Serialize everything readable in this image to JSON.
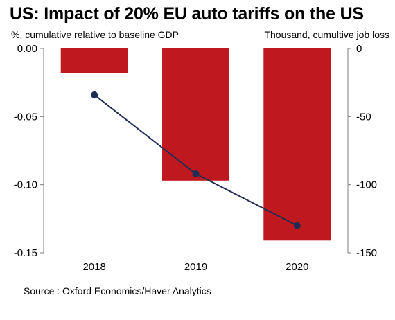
{
  "chart_data": {
    "type": "bar",
    "title": "US: Impact of 20% EU auto tariffs on the US",
    "categories": [
      "2018",
      "2019",
      "2020"
    ],
    "series": [
      {
        "axis": "left",
        "chart_type": "bar",
        "color": "#c0181f",
        "values": [
          -0.018,
          -0.097,
          -0.141
        ]
      },
      {
        "axis": "right",
        "chart_type": "line",
        "color": "#1f2d54",
        "values": [
          -34,
          -92,
          -130
        ]
      }
    ],
    "ylabel": "%, cumulative relative to baseline GDP",
    "ylabel_right": "Thousand, cumultive job loss",
    "ylim": [
      -0.15,
      0
    ],
    "ylim_right": [
      -150,
      0
    ],
    "yticks": [
      "0.00",
      "-0.05",
      "-0.10",
      "-0.15"
    ],
    "yticks_right": [
      "0",
      "-50",
      "-100",
      "-150"
    ],
    "grid": false,
    "legend": "none"
  },
  "source": "Source : Oxford Economics/Haver Analytics"
}
